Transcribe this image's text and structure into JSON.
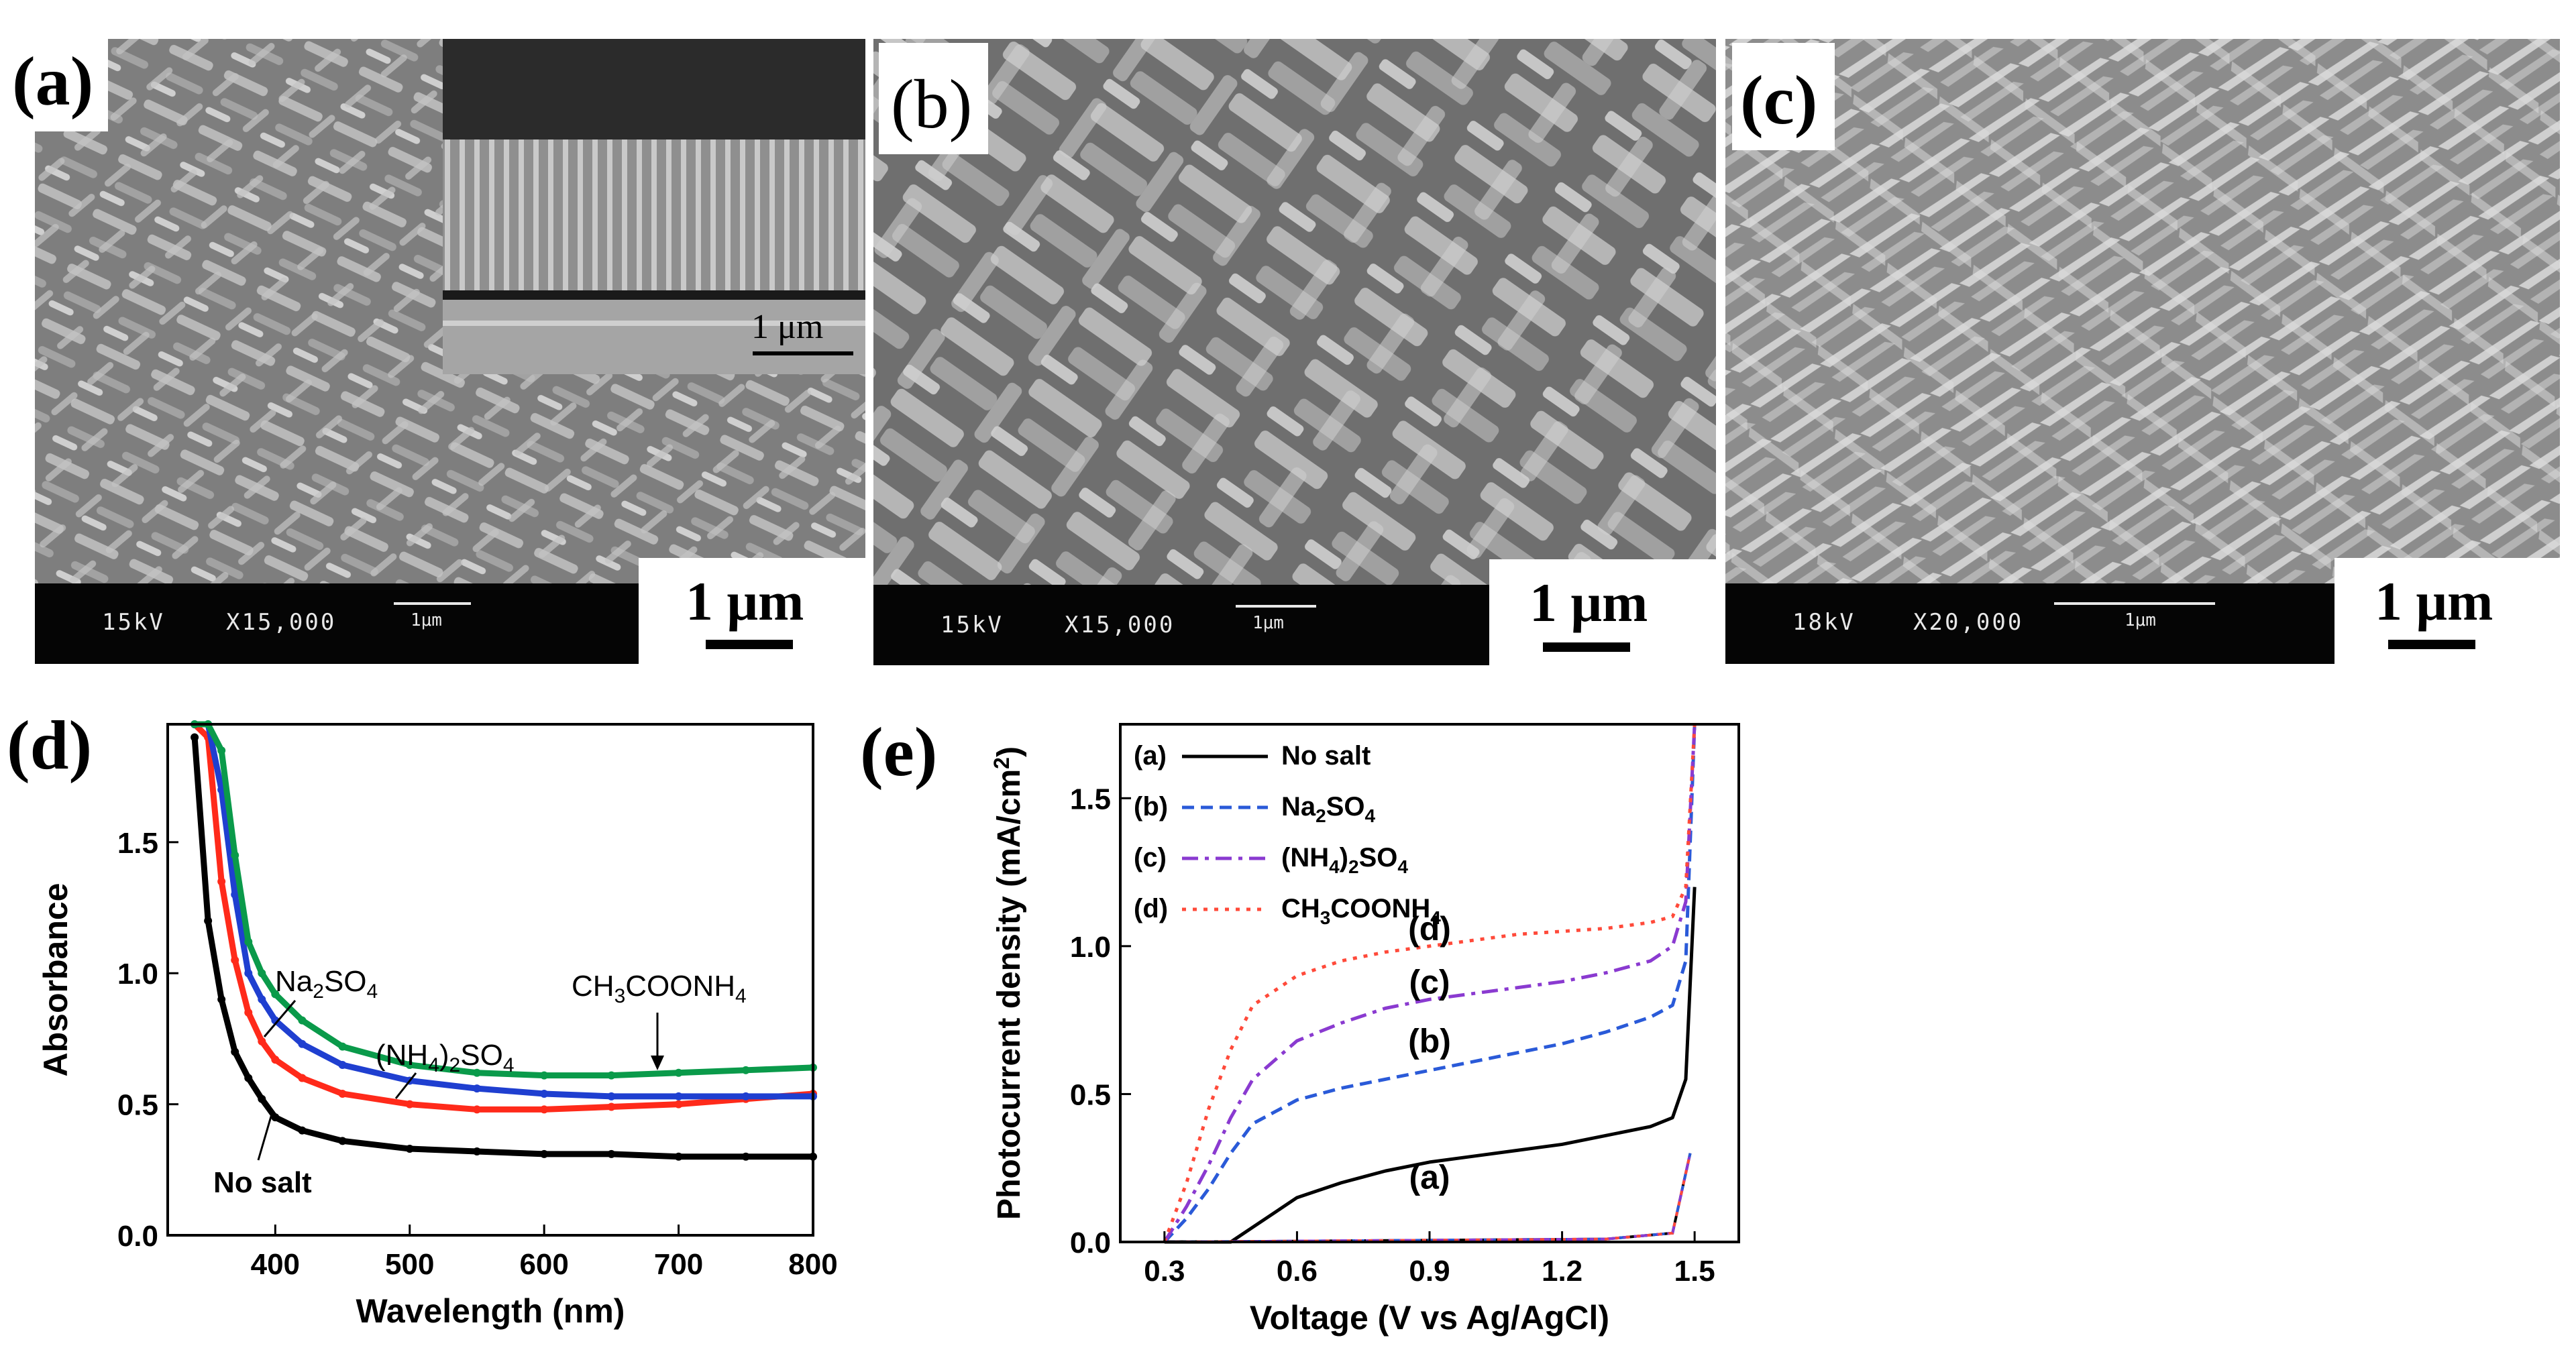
{
  "panels": {
    "a": {
      "label": "(a)",
      "sem_voltage": "15kV",
      "sem_mag": "X15,000",
      "sem_small_scale": "1μm",
      "scale_text": "1 μm",
      "inset_scale_text": "1 μm"
    },
    "b": {
      "label": "(b)",
      "sem_voltage": "15kV",
      "sem_mag": "X15,000",
      "sem_small_scale": "1μm",
      "scale_text": "1 μm"
    },
    "c": {
      "label": "(c)",
      "sem_voltage": "18kV",
      "sem_mag": "X20,000",
      "sem_small_scale": "1μm",
      "scale_text": "1 μm"
    }
  },
  "chart_data": [
    {
      "panel_label": "(d)",
      "type": "line",
      "xlabel": "Wavelength (nm)",
      "ylabel": "Absorbance",
      "xlim": [
        320,
        800
      ],
      "ylim": [
        0,
        1.95
      ],
      "xticks": [
        400,
        500,
        600,
        700,
        800
      ],
      "yticks": [
        0.0,
        0.5,
        1.0,
        1.5
      ],
      "ytick_labels": [
        "0.0",
        "0.5",
        "1.0",
        "1.5"
      ],
      "x": [
        340,
        350,
        360,
        370,
        380,
        390,
        400,
        420,
        450,
        500,
        550,
        600,
        650,
        700,
        750,
        800
      ],
      "series": [
        {
          "name": "No salt",
          "color": "#000000",
          "values": [
            1.9,
            1.2,
            0.9,
            0.7,
            0.6,
            0.52,
            0.45,
            0.4,
            0.36,
            0.33,
            0.32,
            0.31,
            0.31,
            0.3,
            0.3,
            0.3
          ]
        },
        {
          "name": "Na2SO4",
          "color": "#ff2a1a",
          "values": [
            1.95,
            1.9,
            1.35,
            1.05,
            0.85,
            0.74,
            0.67,
            0.6,
            0.54,
            0.5,
            0.48,
            0.48,
            0.49,
            0.5,
            0.52,
            0.54
          ]
        },
        {
          "name": "(NH4)2SO4",
          "color": "#1f3fd0",
          "values": [
            1.95,
            1.95,
            1.7,
            1.3,
            1.0,
            0.9,
            0.82,
            0.73,
            0.65,
            0.59,
            0.56,
            0.54,
            0.53,
            0.53,
            0.53,
            0.53
          ]
        },
        {
          "name": "CH3COONH4",
          "color": "#0a9a4a",
          "values": [
            1.95,
            1.95,
            1.85,
            1.45,
            1.12,
            1.0,
            0.92,
            0.82,
            0.72,
            0.65,
            0.62,
            0.61,
            0.61,
            0.62,
            0.63,
            0.64
          ]
        }
      ],
      "annotations": {
        "no_salt": "No salt",
        "na2so4_main": "Na",
        "na2so4_sub1": "2",
        "na2so4_rest": "SO",
        "na2so4_sub2": "4",
        "nh4_open": "(NH",
        "nh4_sub1": "4",
        "nh4_mid": ")",
        "nh4_sub2": "2",
        "nh4_so": "SO",
        "nh4_sub3": "4",
        "ch3_a": "CH",
        "ch3_sub1": "3",
        "ch3_b": "COONH",
        "ch3_sub2": "4"
      }
    },
    {
      "panel_label": "(e)",
      "type": "line",
      "xlabel": "Voltage (V vs Ag/AgCl)",
      "ylabel": "Photocurrent density (mA/cm",
      "ylabel_sup": "2",
      "ylabel_close": ")",
      "xlim": [
        0.2,
        1.6
      ],
      "ylim": [
        0,
        1.75
      ],
      "xticks": [
        0.3,
        0.6,
        0.9,
        1.2,
        1.5
      ],
      "xtick_labels": [
        "0.3",
        "0.6",
        "0.9",
        "1.2",
        "1.5"
      ],
      "yticks": [
        0.0,
        0.5,
        1.0,
        1.5
      ],
      "ytick_labels": [
        "0.0",
        "0.5",
        "1.0",
        "1.5"
      ],
      "x": [
        0.3,
        0.35,
        0.4,
        0.45,
        0.5,
        0.6,
        0.7,
        0.8,
        0.9,
        1.0,
        1.1,
        1.2,
        1.3,
        1.4,
        1.45,
        1.48,
        1.5
      ],
      "series": [
        {
          "name": "No salt",
          "legend_id": "(a)",
          "style": "solid",
          "color": "#000000",
          "values": [
            0,
            0,
            0,
            0.0,
            0.05,
            0.15,
            0.2,
            0.24,
            0.27,
            0.29,
            0.31,
            0.33,
            0.36,
            0.39,
            0.42,
            0.55,
            1.2
          ]
        },
        {
          "name": "Na2SO4",
          "legend_id": "(b)",
          "style": "dashed",
          "color": "#2a5ad8",
          "values": [
            0.0,
            0.08,
            0.18,
            0.3,
            0.4,
            0.48,
            0.52,
            0.55,
            0.58,
            0.61,
            0.64,
            0.67,
            0.71,
            0.76,
            0.8,
            0.95,
            1.75
          ]
        },
        {
          "name": "(NH4)2SO4",
          "legend_id": "(c)",
          "style": "dashdot",
          "color": "#8a3ad0",
          "values": [
            0.0,
            0.12,
            0.26,
            0.42,
            0.55,
            0.68,
            0.74,
            0.79,
            0.82,
            0.84,
            0.86,
            0.88,
            0.91,
            0.95,
            1.0,
            1.15,
            1.75
          ]
        },
        {
          "name": "CH3COONH4",
          "legend_id": "(d)",
          "style": "dotted",
          "color": "#ff4a3a",
          "values": [
            0.0,
            0.2,
            0.45,
            0.65,
            0.8,
            0.9,
            0.95,
            0.98,
            1.0,
            1.02,
            1.04,
            1.05,
            1.06,
            1.08,
            1.1,
            1.2,
            1.75
          ]
        }
      ],
      "legend": [
        {
          "id": "(a)",
          "base": "No salt",
          "parts": []
        },
        {
          "id": "(b)",
          "base": "Na",
          "parts": [
            "2",
            "SO",
            "4"
          ]
        },
        {
          "id": "(c)",
          "base": "(NH",
          "parts": [
            "4",
            ")",
            "2",
            "SO",
            "4"
          ]
        },
        {
          "id": "(d)",
          "base": "CH",
          "parts": [
            "3",
            "COONH",
            "4"
          ]
        }
      ],
      "curve_labels": [
        "(d)",
        "(c)",
        "(b)",
        "(a)"
      ]
    }
  ]
}
